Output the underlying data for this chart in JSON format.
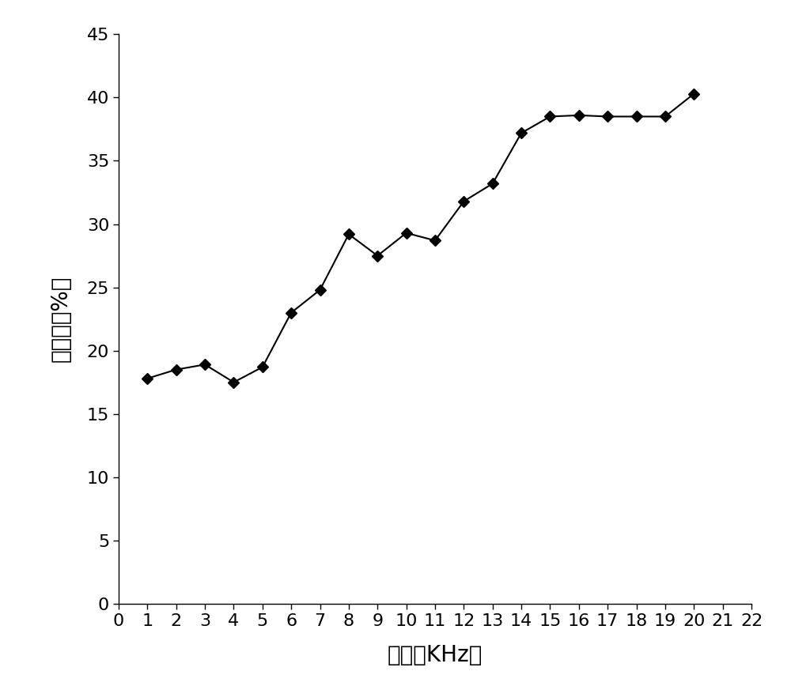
{
  "x": [
    1,
    2,
    3,
    4,
    5,
    6,
    7,
    8,
    9,
    10,
    11,
    12,
    13,
    14,
    15,
    16,
    17,
    18,
    19,
    20
  ],
  "y": [
    17.8,
    18.5,
    18.9,
    17.5,
    18.7,
    23.0,
    24.8,
    29.2,
    27.5,
    29.3,
    28.7,
    31.8,
    33.2,
    37.2,
    38.5,
    38.6,
    38.5,
    38.5,
    38.5,
    40.3
  ],
  "xlabel": "频率（KHz）",
  "ylabel": "降解率（%）",
  "xlim": [
    0,
    22
  ],
  "ylim": [
    0,
    45
  ],
  "xticks": [
    0,
    1,
    2,
    3,
    4,
    5,
    6,
    7,
    8,
    9,
    10,
    11,
    12,
    13,
    14,
    15,
    16,
    17,
    18,
    19,
    20,
    21,
    22
  ],
  "yticks": [
    0,
    5,
    10,
    15,
    20,
    25,
    30,
    35,
    40,
    45
  ],
  "line_color": "#000000",
  "marker": "D",
  "marker_color": "#000000",
  "marker_size": 7,
  "line_width": 1.5,
  "background_color": "#ffffff",
  "font_size_label": 20,
  "font_size_tick": 16
}
